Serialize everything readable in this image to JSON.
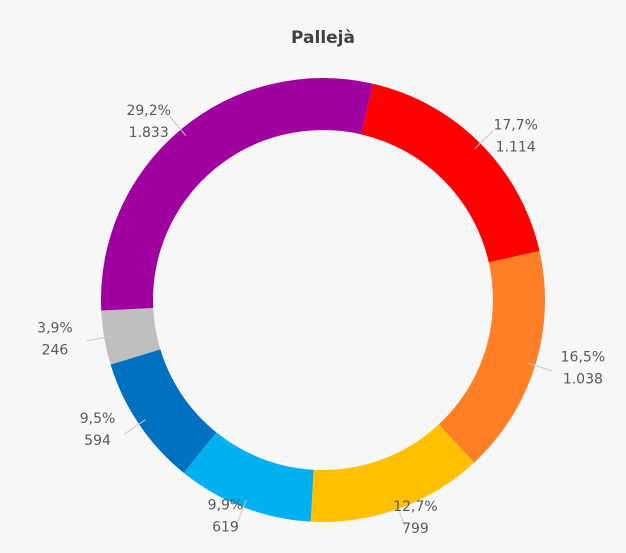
{
  "chart_data": {
    "type": "donut",
    "title": "Pallejà",
    "series": [
      {
        "name": null,
        "categories": [
          null,
          null,
          null,
          null,
          null,
          null,
          null
        ],
        "values": [
          1114,
          1038,
          799,
          619,
          594,
          246,
          1833
        ],
        "value_labels": [
          "1.114",
          "1.038",
          "799",
          "619",
          "594",
          "246",
          "1.833"
        ],
        "percentages": [
          17.7,
          16.5,
          12.7,
          9.9,
          9.5,
          3.9,
          29.2
        ],
        "percentage_labels": [
          "17,7%",
          "16,5%",
          "12,7%",
          "9,9%",
          "9,5%",
          "3,9%",
          "29,2%"
        ],
        "colors": [
          "#ff0000",
          "#ff7f27",
          "#ffc000",
          "#00b0f0",
          "#0070c0",
          "#bfbfbf",
          "#a000a0"
        ]
      }
    ]
  }
}
